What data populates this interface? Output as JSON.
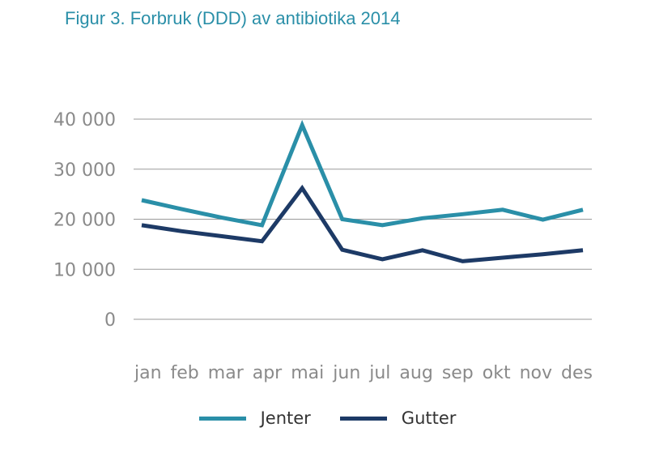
{
  "title": "Figur 3. Forbruk (DDD) av antibiotika 2014",
  "colors": {
    "jenter": "#2a8fa8",
    "gutter": "#1d3a66",
    "grid": "#9a9a9a",
    "text": "#8a8a8a"
  },
  "chart_data": {
    "type": "line",
    "categories": [
      "jan",
      "feb",
      "mar",
      "apr",
      "mai",
      "jun",
      "jul",
      "aug",
      "sep",
      "okt",
      "nov",
      "des"
    ],
    "series": [
      {
        "name": "Jenter",
        "values": [
          23800,
          22000,
          20300,
          18800,
          38800,
          20000,
          18800,
          20200,
          21000,
          21900,
          19900,
          21900
        ]
      },
      {
        "name": "Gutter",
        "values": [
          18800,
          17600,
          16600,
          15600,
          26200,
          13900,
          12000,
          13800,
          11600,
          12300,
          13000,
          13800
        ]
      }
    ],
    "ylim": [
      0,
      40000
    ],
    "yticks": [
      0,
      10000,
      20000,
      30000,
      40000
    ],
    "ytick_labels": [
      "0",
      "10 000",
      "20 000",
      "30 000",
      "40 000"
    ],
    "title": "Figur 3. Forbruk (DDD) av antibiotika 2014",
    "xlabel": "",
    "ylabel": "",
    "grid": true,
    "legend_position": "bottom"
  },
  "legend": [
    {
      "label": "Jenter",
      "color": "#2a8fa8"
    },
    {
      "label": "Gutter",
      "color": "#1d3a66"
    }
  ]
}
